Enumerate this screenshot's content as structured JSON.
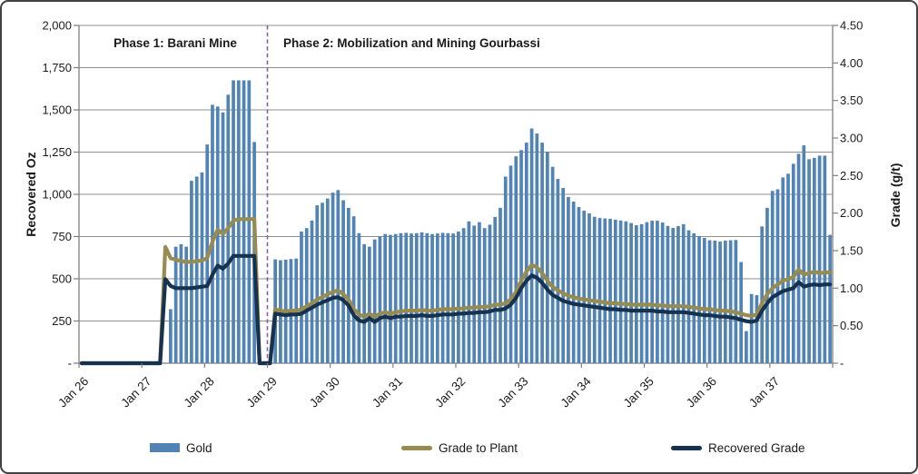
{
  "chart_data": {
    "type": "combo-bar-line",
    "title": "",
    "x_tick_labels": [
      "Jan 26",
      "Jan 27",
      "Jan 28",
      "Jan 29",
      "Jan 30",
      "Jan 31",
      "Jan 32",
      "Jan 33",
      "Jan 34",
      "Jan 35",
      "Jan 36",
      "Jan 37"
    ],
    "months_per_tick": 12,
    "n_points": 144,
    "left_axis": {
      "title": "Recovered  Oz",
      "min": 0,
      "max": 2000,
      "step": 250,
      "tick_labels": [
        "-",
        "250",
        "500",
        "750",
        "1,000",
        "1,250",
        "1,500",
        "1,750",
        "2,000"
      ]
    },
    "right_axis": {
      "title": "Grade (g/t)",
      "min": 0,
      "max": 4.5,
      "step": 0.5,
      "tick_labels": [
        "-",
        "0.50",
        "1.00",
        "1.50",
        "2.00",
        "2.50",
        "3.00",
        "3.50",
        "4.00",
        "4.50"
      ]
    },
    "annotations": {
      "phase1": "Phase 1: Barani Mine",
      "phase2": "Phase 2: Mobilization and Mining Gourbassi",
      "divider_index": 36,
      "divider_color": "#7E62A3"
    },
    "colors": {
      "grid": "#8f8f8f",
      "axis": "#7f7f7f",
      "text": "#1c1c1c"
    },
    "series": [
      {
        "name": "Gold",
        "type": "bar",
        "axis": "left",
        "color": "#5283B5",
        "values": [
          0,
          0,
          0,
          0,
          0,
          0,
          0,
          0,
          0,
          0,
          0,
          0,
          0,
          0,
          0,
          0,
          0,
          320,
          690,
          705,
          690,
          1080,
          1105,
          1130,
          1295,
          1530,
          1520,
          1485,
          1590,
          1675,
          1675,
          1675,
          1675,
          1310,
          0,
          0,
          0,
          615,
          610,
          613,
          617,
          620,
          780,
          800,
          845,
          935,
          950,
          975,
          1010,
          1025,
          965,
          920,
          870,
          770,
          705,
          690,
          733,
          750,
          765,
          760,
          765,
          770,
          772,
          768,
          770,
          775,
          770,
          765,
          768,
          772,
          770,
          768,
          780,
          800,
          840,
          815,
          835,
          800,
          820,
          866,
          920,
          1105,
          1170,
          1225,
          1262,
          1306,
          1390,
          1360,
          1306,
          1253,
          1163,
          1091,
          1038,
          984,
          957,
          925,
          903,
          887,
          867,
          860,
          857,
          855,
          850,
          845,
          840,
          830,
          817,
          823,
          835,
          844,
          844,
          833,
          813,
          801,
          812,
          823,
          787,
          769,
          753,
          742,
          728,
          726,
          720,
          726,
          728,
          730,
          599,
          190,
          410,
          403,
          810,
          920,
          1020,
          1030,
          1100,
          1122,
          1181,
          1240,
          1290,
          1208,
          1216,
          1229,
          1229,
          760
        ]
      },
      {
        "name": "Grade to Plant",
        "type": "line",
        "axis": "right",
        "color": "#968C51",
        "values": [
          0,
          0,
          0,
          0,
          0,
          0,
          0,
          0,
          0,
          0,
          0,
          0,
          0,
          0,
          0,
          0,
          1.55,
          1.4,
          1.38,
          1.36,
          1.35,
          1.35,
          1.36,
          1.37,
          1.4,
          1.62,
          1.78,
          1.72,
          1.8,
          1.9,
          1.92,
          1.92,
          1.92,
          1.92,
          0,
          0,
          0,
          0.72,
          0.7,
          0.69,
          0.7,
          0.7,
          0.72,
          0.76,
          0.8,
          0.85,
          0.88,
          0.92,
          0.95,
          0.97,
          0.92,
          0.85,
          0.72,
          0.65,
          0.62,
          0.66,
          0.62,
          0.66,
          0.68,
          0.66,
          0.68,
          0.69,
          0.7,
          0.7,
          0.7,
          0.71,
          0.7,
          0.7,
          0.71,
          0.72,
          0.72,
          0.72,
          0.73,
          0.73,
          0.74,
          0.74,
          0.75,
          0.75,
          0.76,
          0.78,
          0.78,
          0.8,
          0.85,
          0.95,
          1.1,
          1.22,
          1.31,
          1.28,
          1.2,
          1.1,
          1.02,
          0.97,
          0.93,
          0.9,
          0.88,
          0.86,
          0.85,
          0.84,
          0.83,
          0.82,
          0.81,
          0.8,
          0.8,
          0.79,
          0.79,
          0.78,
          0.78,
          0.78,
          0.78,
          0.78,
          0.77,
          0.77,
          0.76,
          0.76,
          0.76,
          0.76,
          0.75,
          0.74,
          0.73,
          0.72,
          0.72,
          0.71,
          0.7,
          0.7,
          0.69,
          0.68,
          0.66,
          0.64,
          0.63,
          0.65,
          0.8,
          0.92,
          1.0,
          1.05,
          1.1,
          1.12,
          1.15,
          1.25,
          1.18,
          1.2,
          1.22,
          1.2,
          1.21,
          1.21
        ]
      },
      {
        "name": "Recovered Grade",
        "type": "line",
        "axis": "right",
        "color": "#17324F",
        "values": [
          0,
          0,
          0,
          0,
          0,
          0,
          0,
          0,
          0,
          0,
          0,
          0,
          0,
          0,
          0,
          0,
          1.12,
          1.03,
          1.0,
          1.0,
          1.0,
          1.0,
          1.01,
          1.02,
          1.03,
          1.18,
          1.3,
          1.26,
          1.33,
          1.43,
          1.43,
          1.43,
          1.43,
          1.43,
          0,
          0,
          0,
          0.66,
          0.65,
          0.64,
          0.65,
          0.65,
          0.66,
          0.7,
          0.74,
          0.78,
          0.81,
          0.84,
          0.87,
          0.88,
          0.84,
          0.77,
          0.64,
          0.57,
          0.55,
          0.6,
          0.55,
          0.6,
          0.62,
          0.6,
          0.62,
          0.62,
          0.63,
          0.63,
          0.63,
          0.64,
          0.63,
          0.63,
          0.64,
          0.65,
          0.65,
          0.65,
          0.66,
          0.66,
          0.67,
          0.67,
          0.68,
          0.68,
          0.69,
          0.71,
          0.71,
          0.73,
          0.78,
          0.87,
          1.0,
          1.1,
          1.17,
          1.14,
          1.07,
          0.98,
          0.91,
          0.87,
          0.83,
          0.81,
          0.79,
          0.78,
          0.77,
          0.76,
          0.75,
          0.74,
          0.73,
          0.72,
          0.72,
          0.71,
          0.71,
          0.7,
          0.7,
          0.7,
          0.7,
          0.7,
          0.69,
          0.69,
          0.68,
          0.68,
          0.68,
          0.68,
          0.67,
          0.66,
          0.65,
          0.64,
          0.64,
          0.63,
          0.62,
          0.62,
          0.61,
          0.6,
          0.58,
          0.56,
          0.55,
          0.57,
          0.7,
          0.8,
          0.88,
          0.92,
          0.96,
          0.98,
          1.0,
          1.08,
          1.02,
          1.04,
          1.05,
          1.04,
          1.05,
          1.05
        ]
      }
    ]
  }
}
